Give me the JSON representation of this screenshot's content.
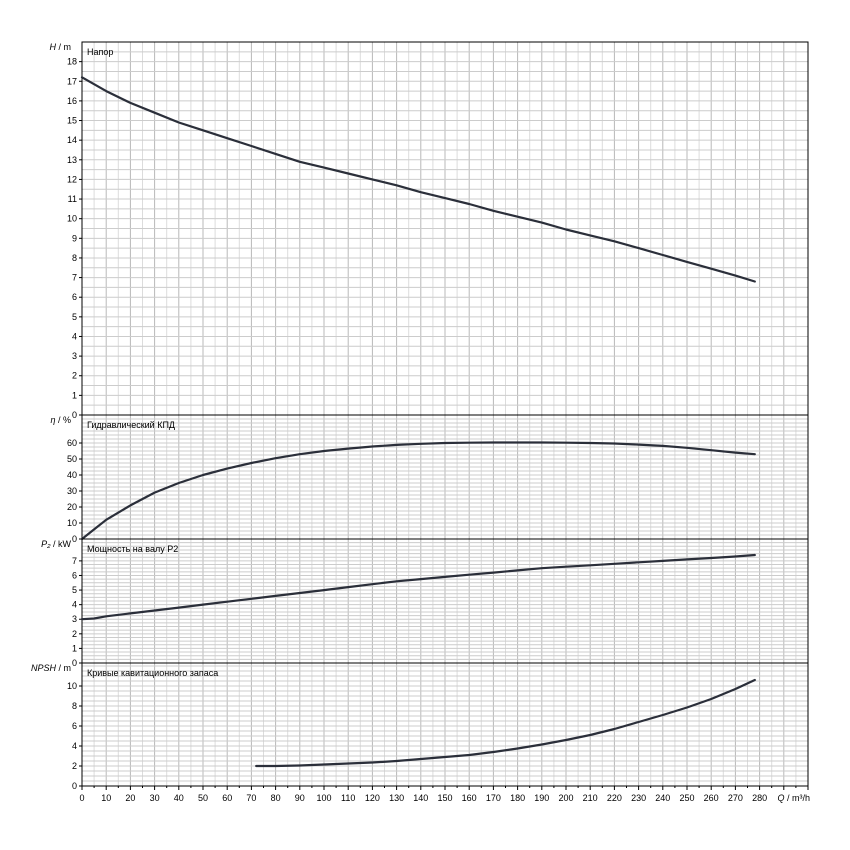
{
  "x_axis": {
    "label_symbol": "Q",
    "label_unit": " / m³/h",
    "range": [
      0,
      280
    ],
    "ticks": [
      "0",
      "10",
      "20",
      "30",
      "40",
      "50",
      "60",
      "70",
      "80",
      "90",
      "100",
      "110",
      "120",
      "130",
      "140",
      "150",
      "160",
      "170",
      "180",
      "190",
      "200",
      "210",
      "220",
      "230",
      "240",
      "250",
      "260",
      "270",
      "280"
    ]
  },
  "chart_data": [
    {
      "type": "line",
      "title": "Напор",
      "ylabel_symbol": "H",
      "ylabel_unit": " / m",
      "ylim": [
        0,
        18.5
      ],
      "y_ticks": [
        0,
        1,
        2,
        3,
        4,
        5,
        6,
        7,
        8,
        9,
        10,
        11,
        12,
        13,
        14,
        15,
        16,
        17,
        18
      ],
      "grid": true,
      "series": [
        {
          "x": [
            0,
            10,
            20,
            30,
            40,
            50,
            60,
            70,
            80,
            90,
            100,
            110,
            120,
            130,
            140,
            150,
            160,
            170,
            180,
            190,
            200,
            210,
            220,
            230,
            240,
            250,
            260,
            270,
            278
          ],
          "y": [
            17.2,
            16.5,
            15.9,
            15.4,
            14.9,
            14.5,
            14.1,
            13.7,
            13.3,
            12.9,
            12.6,
            12.3,
            12.0,
            11.7,
            11.35,
            11.05,
            10.75,
            10.4,
            10.1,
            9.8,
            9.45,
            9.15,
            8.85,
            8.5,
            8.15,
            7.8,
            7.45,
            7.1,
            6.8
          ]
        }
      ]
    },
    {
      "type": "line",
      "title": "Гидравлический КПД",
      "ylabel_symbol": "η",
      "ylabel_unit": " / %",
      "ylim": [
        0,
        75
      ],
      "y_ticks": [
        0,
        10,
        20,
        30,
        40,
        50,
        60
      ],
      "grid": true,
      "series": [
        {
          "x": [
            0,
            5,
            10,
            20,
            30,
            40,
            50,
            60,
            70,
            80,
            90,
            100,
            110,
            120,
            130,
            140,
            150,
            160,
            170,
            180,
            190,
            200,
            210,
            220,
            230,
            240,
            250,
            260,
            270,
            278
          ],
          "y": [
            0,
            6,
            12,
            21,
            29,
            35,
            40,
            44,
            47.5,
            50.5,
            53,
            55,
            56.5,
            57.8,
            58.8,
            59.5,
            60,
            60.2,
            60.3,
            60.3,
            60.3,
            60.2,
            60,
            59.7,
            59,
            58.2,
            57,
            55.5,
            54,
            53
          ]
        }
      ]
    },
    {
      "type": "line",
      "title": "Мощность на валу P2",
      "ylabel_symbol": "P₂",
      "ylabel_unit": " / kW",
      "ylim": [
        0,
        8
      ],
      "y_ticks": [
        0,
        1,
        2,
        3,
        4,
        5,
        6,
        7
      ],
      "grid": true,
      "series": [
        {
          "x": [
            0,
            5,
            10,
            20,
            30,
            40,
            50,
            60,
            70,
            80,
            90,
            100,
            110,
            120,
            130,
            140,
            150,
            160,
            170,
            180,
            190,
            200,
            210,
            220,
            230,
            240,
            250,
            260,
            270,
            278
          ],
          "y": [
            3.0,
            3.05,
            3.2,
            3.4,
            3.6,
            3.8,
            4.0,
            4.2,
            4.4,
            4.6,
            4.8,
            5.0,
            5.2,
            5.4,
            5.6,
            5.75,
            5.9,
            6.05,
            6.2,
            6.35,
            6.5,
            6.6,
            6.7,
            6.8,
            6.9,
            7.0,
            7.1,
            7.2,
            7.3,
            7.4
          ]
        }
      ]
    },
    {
      "type": "line",
      "title": "Кривые кавитационного запаса",
      "ylabel_symbol": "NPSH",
      "ylabel_unit": " / m",
      "ylim": [
        0,
        12
      ],
      "y_ticks": [
        0,
        2,
        4,
        6,
        8,
        10
      ],
      "grid": true,
      "series": [
        {
          "x": [
            72,
            80,
            90,
            100,
            110,
            120,
            130,
            140,
            150,
            160,
            170,
            180,
            190,
            200,
            210,
            220,
            230,
            240,
            250,
            260,
            270,
            278
          ],
          "y": [
            2.0,
            2.0,
            2.05,
            2.15,
            2.25,
            2.35,
            2.5,
            2.7,
            2.9,
            3.1,
            3.4,
            3.75,
            4.15,
            4.6,
            5.1,
            5.7,
            6.4,
            7.1,
            7.85,
            8.7,
            9.7,
            10.6
          ]
        }
      ]
    }
  ]
}
